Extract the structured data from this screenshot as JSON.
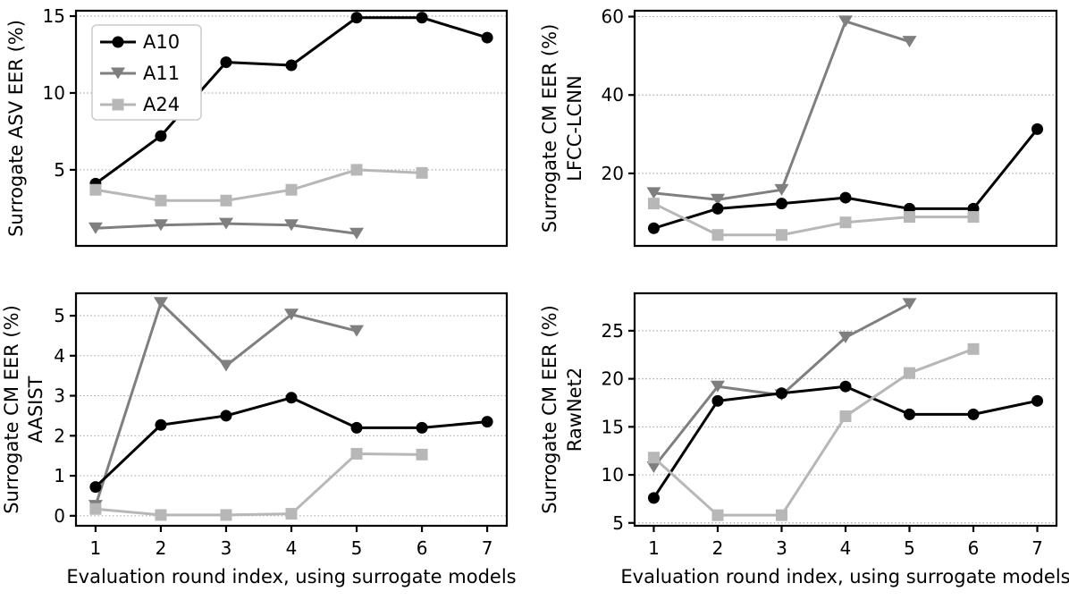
{
  "figure": {
    "background": "#ffffff",
    "text_color": "#000000",
    "grid_color": "#aaaaaa",
    "spine_color": "#000000",
    "legend_border_color": "#cccccc",
    "legend_background": "#ffffff",
    "series_colors": {
      "A10": "#000000",
      "A11": "#7f7f7f",
      "A24": "#b7b7b7"
    },
    "draw_order": [
      "A11",
      "A10",
      "A24"
    ],
    "legend_entries": [
      "A10",
      "A11",
      "A24"
    ],
    "shared_xlabel": "Evaluation round index, using surrogate models",
    "x_tick_labels": [
      "1",
      "2",
      "3",
      "4",
      "5",
      "6",
      "7"
    ]
  },
  "chart_data": [
    {
      "id": "asv-eer",
      "type": "line",
      "ylabel_lines": [
        "Surrogate ASV EER (%)"
      ],
      "xlabel": "",
      "xlim": [
        0.7,
        7.3
      ],
      "ylim": [
        0.05,
        15.35
      ],
      "yticks": [
        5,
        10,
        15
      ],
      "xticks": [
        1,
        2,
        3,
        4,
        5,
        6,
        7
      ],
      "show_x_tick_labels": false,
      "show_legend": true,
      "grid": "horizontal-dotted",
      "legend_position": "upper-left",
      "series": [
        {
          "name": "A10",
          "marker": "circle",
          "x": [
            1,
            2,
            3,
            4,
            5,
            6,
            7
          ],
          "y": [
            4.1,
            7.2,
            12.0,
            11.8,
            14.9,
            14.9,
            13.6
          ]
        },
        {
          "name": "A11",
          "marker": "triangle-down",
          "x": [
            1,
            2,
            3,
            4,
            5
          ],
          "y": [
            1.2,
            1.4,
            1.5,
            1.4,
            0.85
          ]
        },
        {
          "name": "A24",
          "marker": "square",
          "x": [
            1,
            2,
            3,
            4,
            5,
            6
          ],
          "y": [
            3.7,
            3.0,
            3.0,
            3.7,
            5.0,
            4.8
          ]
        }
      ]
    },
    {
      "id": "cm-eer-lfcc-lcnn",
      "type": "line",
      "ylabel_lines": [
        "Surrogate CM EER (%)",
        "LFCC-LCNN"
      ],
      "xlabel": "",
      "xlim": [
        0.7,
        7.3
      ],
      "ylim": [
        1.5,
        61.5
      ],
      "yticks": [
        20,
        40,
        60
      ],
      "xticks": [
        1,
        2,
        3,
        4,
        5,
        6,
        7
      ],
      "show_x_tick_labels": false,
      "show_legend": false,
      "grid": "horizontal-dotted",
      "series": [
        {
          "name": "A10",
          "marker": "circle",
          "x": [
            1,
            2,
            3,
            4,
            5,
            6,
            7
          ],
          "y": [
            6.0,
            11.0,
            12.3,
            13.8,
            11.0,
            11.0,
            31.3
          ]
        },
        {
          "name": "A11",
          "marker": "triangle-down",
          "x": [
            1,
            2,
            3,
            4,
            5
          ],
          "y": [
            15.0,
            13.3,
            15.8,
            58.8,
            53.6
          ]
        },
        {
          "name": "A24",
          "marker": "square",
          "x": [
            1,
            2,
            3,
            4,
            5,
            6
          ],
          "y": [
            12.3,
            4.3,
            4.3,
            7.5,
            8.9,
            8.9
          ]
        }
      ]
    },
    {
      "id": "cm-eer-aasist",
      "type": "line",
      "ylabel_lines": [
        "Surrogate CM EER (%)",
        "AASIST"
      ],
      "xlabel": "Evaluation round index, using surrogate models",
      "xlim": [
        0.7,
        7.3
      ],
      "ylim": [
        -0.25,
        5.56
      ],
      "yticks": [
        0,
        1,
        2,
        3,
        4,
        5
      ],
      "xticks": [
        1,
        2,
        3,
        4,
        5,
        6,
        7
      ],
      "show_x_tick_labels": true,
      "show_legend": false,
      "grid": "horizontal-dotted",
      "series": [
        {
          "name": "A10",
          "marker": "circle",
          "x": [
            1,
            2,
            3,
            4,
            5,
            6,
            7
          ],
          "y": [
            0.72,
            2.27,
            2.5,
            2.95,
            2.2,
            2.2,
            2.35
          ]
        },
        {
          "name": "A11",
          "marker": "triangle-down",
          "x": [
            1,
            2,
            3,
            4,
            5
          ],
          "y": [
            0.25,
            5.32,
            3.75,
            5.03,
            4.62
          ]
        },
        {
          "name": "A24",
          "marker": "square",
          "x": [
            1,
            2,
            3,
            4,
            5,
            6
          ],
          "y": [
            0.17,
            0.02,
            0.02,
            0.05,
            1.55,
            1.53
          ]
        }
      ]
    },
    {
      "id": "cm-eer-rawnet2",
      "type": "line",
      "ylabel_lines": [
        "Surrogate CM EER (%)",
        "RawNet2"
      ],
      "xlabel": "Evaluation round index, using surrogate models",
      "xlim": [
        0.7,
        7.3
      ],
      "ylim": [
        4.7,
        28.9
      ],
      "yticks": [
        5,
        10,
        15,
        20,
        25
      ],
      "xticks": [
        1,
        2,
        3,
        4,
        5,
        6,
        7
      ],
      "show_x_tick_labels": true,
      "show_legend": false,
      "grid": "horizontal-dotted",
      "series": [
        {
          "name": "A10",
          "marker": "circle",
          "x": [
            1,
            2,
            3,
            4,
            5,
            6,
            7
          ],
          "y": [
            7.6,
            17.7,
            18.5,
            19.2,
            16.3,
            16.3,
            17.7
          ]
        },
        {
          "name": "A11",
          "marker": "triangle-down",
          "x": [
            1,
            2,
            3,
            4,
            5
          ],
          "y": [
            10.8,
            19.2,
            18.3,
            24.3,
            27.8
          ]
        },
        {
          "name": "A24",
          "marker": "square",
          "x": [
            1,
            2,
            3,
            4,
            5,
            6
          ],
          "y": [
            11.8,
            5.8,
            5.8,
            16.1,
            20.6,
            23.1
          ]
        }
      ]
    }
  ]
}
